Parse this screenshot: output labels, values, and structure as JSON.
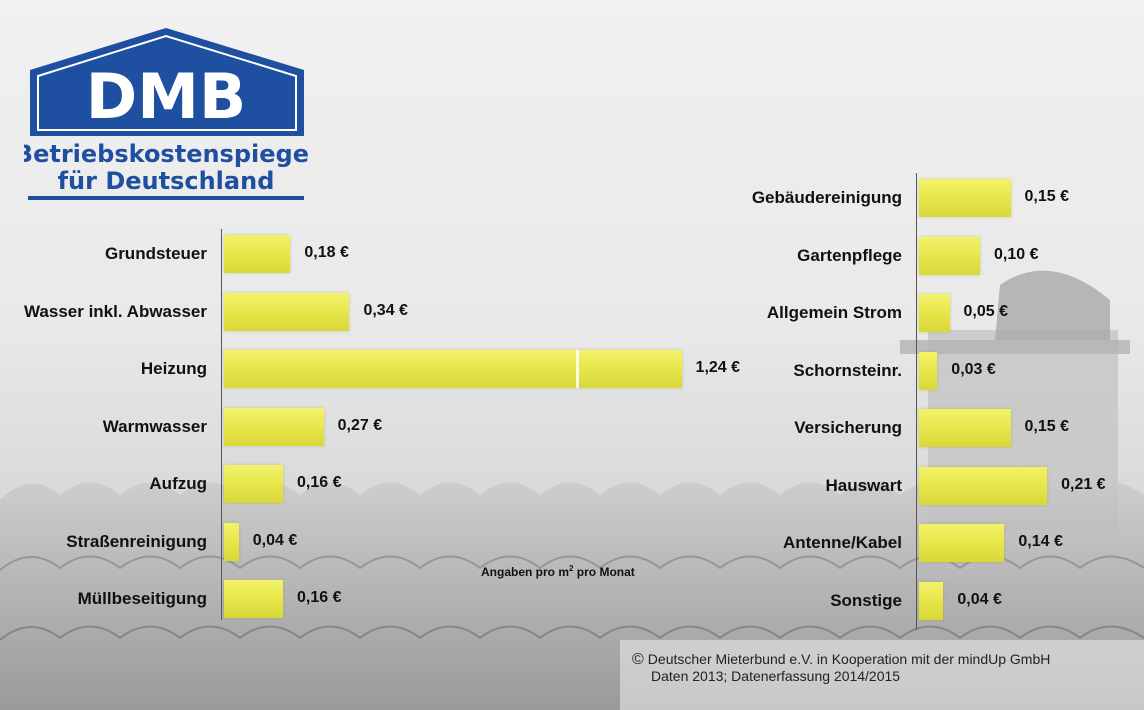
{
  "logo": {
    "brand": "DMB",
    "line1": "Betriebskostenspiegel",
    "line2": "für Deutschland"
  },
  "chart_data": [
    {
      "type": "bar",
      "orientation": "horizontal",
      "unit": "€",
      "categories": [
        "Grundsteuer",
        "Wasser inkl. Abwasser",
        "Heizung",
        "Warmwasser",
        "Aufzug",
        "Straßenreinigung",
        "Müllbeseitigung"
      ],
      "values": [
        0.18,
        0.34,
        1.24,
        0.27,
        0.16,
        0.04,
        0.16
      ],
      "value_labels": [
        "0,18 €",
        "0,34 €",
        "1,24 €",
        "0,27 €",
        "0,16 €",
        "0,04 €",
        "0,16 €"
      ],
      "color": "#e6e64c"
    },
    {
      "type": "bar",
      "orientation": "horizontal",
      "unit": "€",
      "categories": [
        "Gebäudereinigung",
        "Gartenpflege",
        "Allgemein Strom",
        "Schornsteinr.",
        "Versicherung",
        "Hauswart",
        "Antenne/Kabel",
        "Sonstige"
      ],
      "values": [
        0.15,
        0.1,
        0.05,
        0.03,
        0.15,
        0.21,
        0.14,
        0.04
      ],
      "value_labels": [
        "0,15 €",
        "0,10 €",
        "0,05 €",
        "0,03 €",
        "0,15 €",
        "0,21 €",
        "0,14 €",
        "0,04 €"
      ],
      "color": "#e6e64c"
    }
  ],
  "note": {
    "text": "Angaben pro m",
    "superscript": "2",
    "text_after": " pro Monat"
  },
  "footer": {
    "copyright_symbol": "©",
    "line1": "Deutscher Mieterbund e.V. in Kooperation mit der mindUp GmbH",
    "line2": "Daten 2013; Datenerfassung 2014/2015"
  }
}
